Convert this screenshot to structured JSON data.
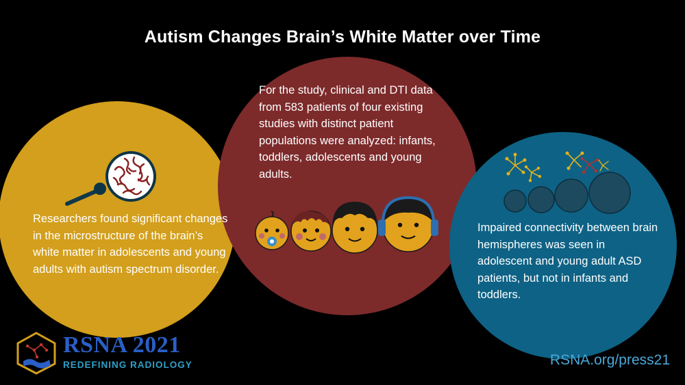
{
  "title": "Autism Changes Brain’s White Matter over Time",
  "panels": {
    "left": {
      "text": "Researchers found significant changes in the microstructure of the brain’s white matter in adolescents and young adults with autism spectrum disorder.",
      "color": "#d39f1c",
      "icon": "magnifying-glass-brain-icon"
    },
    "middle": {
      "text": "For the study, clinical and DTI data from 583 patients of four existing studies with distinct patient populations were analyzed: infants, toddlers, adolescents and young adults.",
      "color": "#7d2a2b",
      "icon": "four-age-group-faces-icon"
    },
    "right": {
      "text": "Impaired connectivity between brain hemispheres was seen in adolescent and young adult ASD patients, but not in infants and toddlers.",
      "color": "#0e6285",
      "icon": "heads-connectivity-icon"
    }
  },
  "logo": {
    "name": "RSNA 2021",
    "tagline": "REDEFINING RADIOLOGY",
    "color": "#2a5fc7"
  },
  "footer": {
    "url": "RSNA.org/press21",
    "color": "#4aa8d8"
  }
}
